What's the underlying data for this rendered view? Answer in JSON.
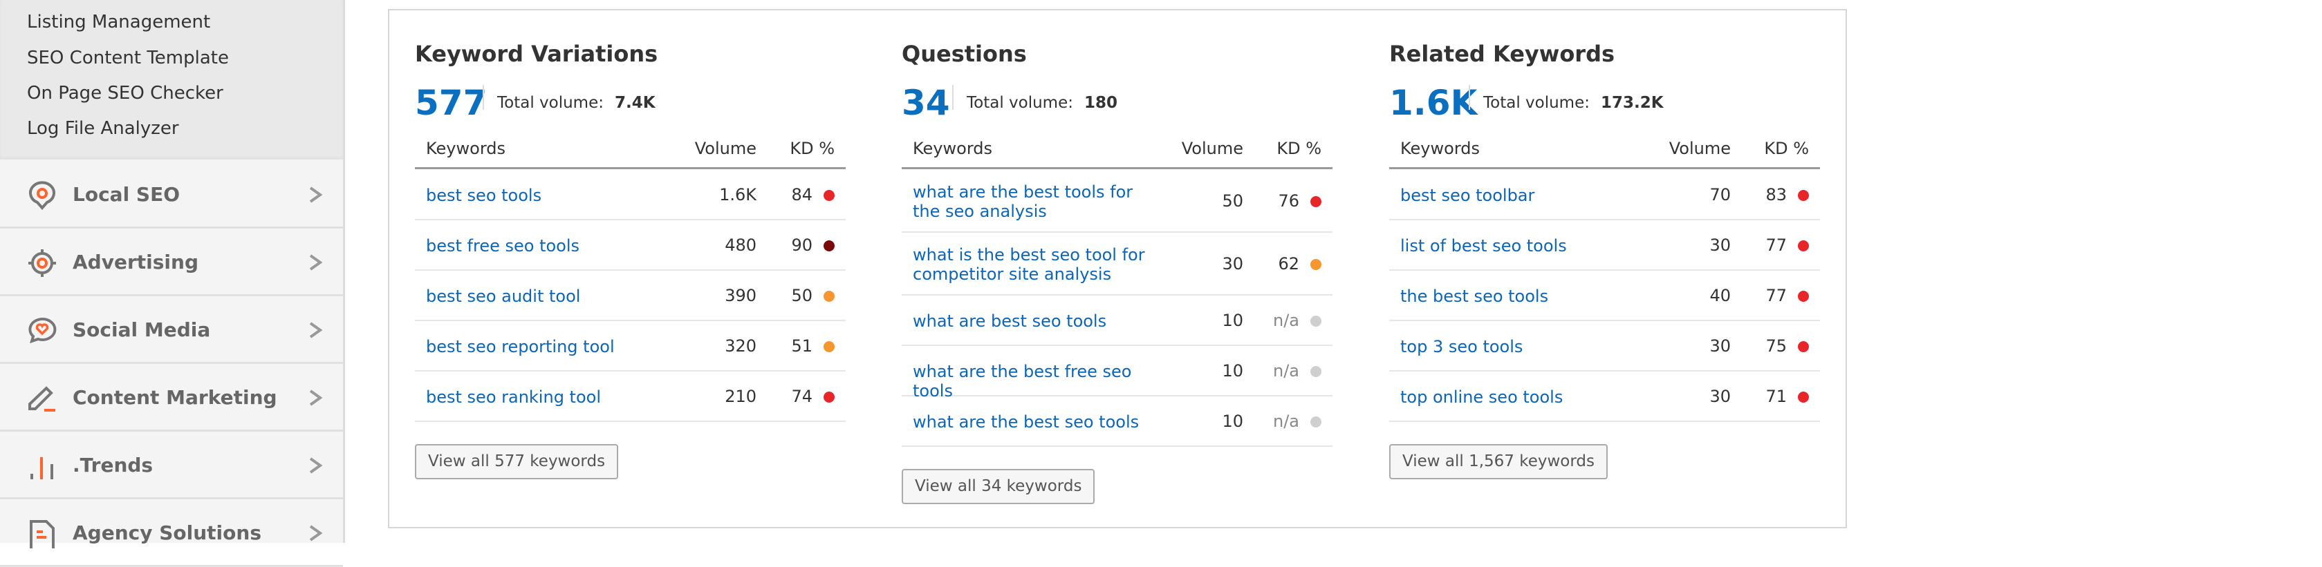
{
  "sidebar": {
    "submenu": [
      "Listing Management",
      "SEO Content Template",
      "On Page SEO Checker",
      "Log File Analyzer"
    ],
    "items": [
      {
        "label": "Local SEO",
        "icon": "map-pin-icon"
      },
      {
        "label": "Advertising",
        "icon": "target-icon"
      },
      {
        "label": "Social Media",
        "icon": "chat-heart-icon"
      },
      {
        "label": "Content Marketing",
        "icon": "pencil-icon"
      },
      {
        "label": ".Trends",
        "icon": "bar-chart-icon"
      },
      {
        "label": "Agency Solutions",
        "icon": "document-icon"
      }
    ],
    "accent": "#ff642d"
  },
  "kd_colors": {
    "very_hard": "#7a0a0a",
    "hard": "#e8262a",
    "medium": "#f7952f",
    "na": "#cfcfcf"
  },
  "columns": [
    {
      "title": "Keyword Variations",
      "count": "577",
      "total_label": "Total volume:",
      "total": "7.4K",
      "headers": {
        "keyword": "Keywords",
        "volume": "Volume",
        "kd": "KD %"
      },
      "rows": [
        {
          "keyword": "best seo tools",
          "volume": "1.6K",
          "kd": "84",
          "level": "hard"
        },
        {
          "keyword": "best free seo tools",
          "volume": "480",
          "kd": "90",
          "level": "very_hard"
        },
        {
          "keyword": "best seo audit tool",
          "volume": "390",
          "kd": "50",
          "level": "medium"
        },
        {
          "keyword": "best seo reporting tool",
          "volume": "320",
          "kd": "51",
          "level": "medium"
        },
        {
          "keyword": "best seo ranking tool",
          "volume": "210",
          "kd": "74",
          "level": "hard"
        }
      ],
      "button": "View all 577 keywords"
    },
    {
      "title": "Questions",
      "count": "34",
      "total_label": "Total volume:",
      "total": "180",
      "headers": {
        "keyword": "Keywords",
        "volume": "Volume",
        "kd": "KD %"
      },
      "rows": [
        {
          "keyword": "what are the best tools for the seo analysis",
          "volume": "50",
          "kd": "76",
          "level": "hard"
        },
        {
          "keyword": "what is the best seo tool for competitor site analysis",
          "volume": "30",
          "kd": "62",
          "level": "medium"
        },
        {
          "keyword": "what are best seo tools",
          "volume": "10",
          "kd": "n/a",
          "level": "na"
        },
        {
          "keyword": "what are the best free seo tools",
          "volume": "10",
          "kd": "n/a",
          "level": "na"
        },
        {
          "keyword": "what are the best seo tools",
          "volume": "10",
          "kd": "n/a",
          "level": "na"
        }
      ],
      "button": "View all 34 keywords"
    },
    {
      "title": "Related Keywords",
      "count": "1.6K",
      "total_label": "Total volume:",
      "total": "173.2K",
      "headers": {
        "keyword": "Keywords",
        "volume": "Volume",
        "kd": "KD %"
      },
      "rows": [
        {
          "keyword": "best seo toolbar",
          "volume": "70",
          "kd": "83",
          "level": "hard"
        },
        {
          "keyword": "list of best seo tools",
          "volume": "30",
          "kd": "77",
          "level": "hard"
        },
        {
          "keyword": "the best seo tools",
          "volume": "40",
          "kd": "77",
          "level": "hard"
        },
        {
          "keyword": "top 3 seo tools",
          "volume": "30",
          "kd": "75",
          "level": "hard"
        },
        {
          "keyword": "top online seo tools",
          "volume": "30",
          "kd": "71",
          "level": "hard"
        }
      ],
      "button": "View all 1,567 keywords"
    }
  ]
}
